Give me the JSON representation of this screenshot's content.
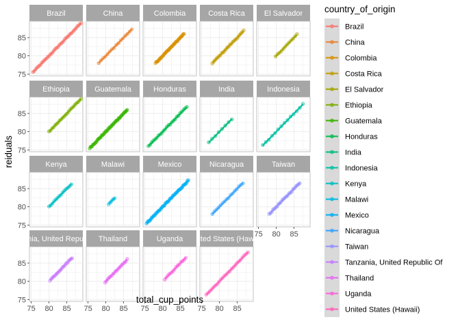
{
  "chart_data": {
    "type": "scatter",
    "xlabel": "total_cup_points",
    "ylabel": "reiduals",
    "xlim": [
      74.5,
      89.5
    ],
    "ylim": [
      74.5,
      89.5
    ],
    "x_ticks": [
      75,
      80,
      85
    ],
    "y_ticks": [
      75,
      80,
      85
    ],
    "grid": true,
    "legend_title": "country_of_origin",
    "legend_position": "right",
    "panels": [
      {
        "name": "Brazil",
        "label": "Brazil",
        "color": "#F8766D",
        "x_range": [
          75.5,
          89.0
        ],
        "n": 40
      },
      {
        "name": "China",
        "label": "China",
        "color": "#EA8331",
        "x_range": [
          78.0,
          87.3
        ],
        "n": 16
      },
      {
        "name": "Colombia",
        "label": "Colombia",
        "color": "#D89000",
        "x_range": [
          78.0,
          86.0
        ],
        "n": 40
      },
      {
        "name": "Costa Rica",
        "label": "Costa Rica",
        "color": "#C09B00",
        "x_range": [
          78.0,
          86.8
        ],
        "n": 24
      },
      {
        "name": "El Salvador",
        "label": "El Salvador",
        "color": "#A3A500",
        "x_range": [
          79.8,
          85.8
        ],
        "n": 12
      },
      {
        "name": "Ethiopia",
        "label": "Ethiopia",
        "color": "#7CAE00",
        "x_range": [
          80.0,
          89.0
        ],
        "n": 22
      },
      {
        "name": "Guatemala",
        "label": "Guatemala",
        "color": "#39B600",
        "x_range": [
          75.5,
          86.0
        ],
        "n": 50
      },
      {
        "name": "Honduras",
        "label": "Honduras",
        "color": "#00BB4E",
        "x_range": [
          76.0,
          86.8
        ],
        "n": 24
      },
      {
        "name": "India",
        "label": "India",
        "color": "#00BF7D",
        "x_range": [
          77.0,
          83.5
        ],
        "n": 8
      },
      {
        "name": "Indonesia",
        "label": "Indonesia",
        "color": "#00C1A3",
        "x_range": [
          76.2,
          87.5
        ],
        "n": 14
      },
      {
        "name": "Kenya",
        "label": "Kenya",
        "color": "#00BFC4",
        "x_range": [
          80.0,
          86.3
        ],
        "n": 14
      },
      {
        "name": "Malawi",
        "label": "Malawi",
        "color": "#00BAE0",
        "x_range": [
          80.8,
          82.5
        ],
        "n": 5
      },
      {
        "name": "Mexico",
        "label": "Mexico",
        "color": "#00B0F6",
        "x_range": [
          75.5,
          87.2
        ],
        "n": 50
      },
      {
        "name": "Nicaragua",
        "label": "Nicaragua",
        "color": "#35A2FF",
        "x_range": [
          78.0,
          86.6
        ],
        "n": 16
      },
      {
        "name": "Taiwan",
        "label": "Taiwan",
        "color": "#9590FF",
        "x_range": [
          78.0,
          86.6
        ],
        "n": 24
      },
      {
        "name": "Tanzania, United Republic Of",
        "label": "Tanzania, United Republic Of",
        "color": "#C77CFF",
        "x_range": [
          80.3,
          86.5
        ],
        "n": 20
      },
      {
        "name": "Thailand",
        "label": "Thailand",
        "color": "#E76BF3",
        "x_range": [
          79.8,
          86.0
        ],
        "n": 18
      },
      {
        "name": "Uganda",
        "label": "Uganda",
        "color": "#FA62DB",
        "x_range": [
          80.6,
          86.5
        ],
        "n": 14
      },
      {
        "name": "United States (Hawaii)",
        "label": "United States (Hawaii)",
        "color": "#FF62BC",
        "x_range": [
          76.3,
          88.0
        ],
        "n": 24
      }
    ]
  }
}
